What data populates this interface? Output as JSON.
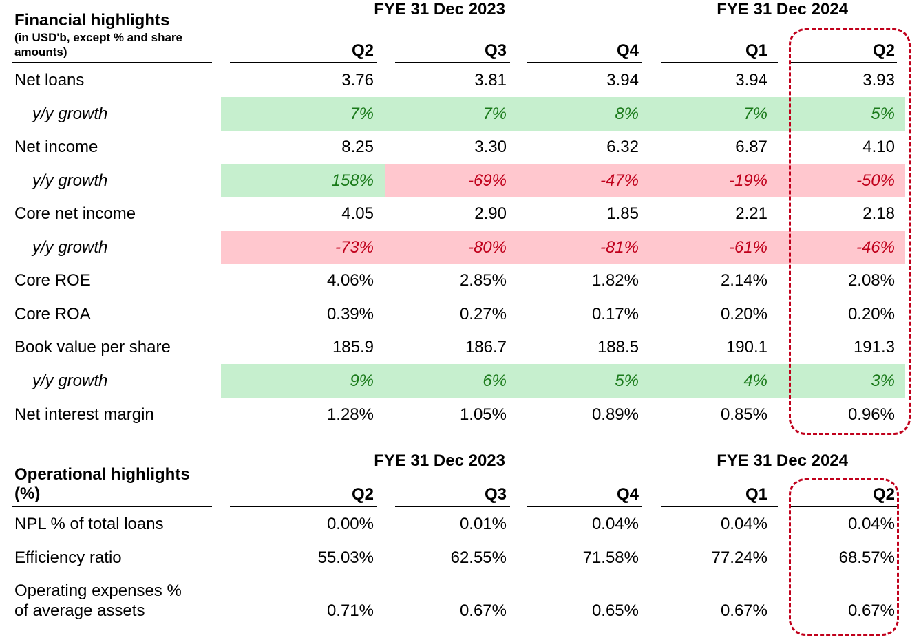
{
  "colors": {
    "positive_band": "#c6efce",
    "negative_band": "#ffc7ce",
    "positive_text": "#1a7a1a",
    "negative_text": "#c0001b",
    "highlight_outline": "#c0001b"
  },
  "financial": {
    "title": "Financial highlights",
    "subtitle_line1": "(in USD'b, except % and share",
    "subtitle_line2": "amounts)",
    "period_2023": "FYE 31 Dec 2023",
    "period_2024": "FYE 31 Dec 2024",
    "quarters": [
      "Q2",
      "Q3",
      "Q4",
      "Q1",
      "Q2"
    ],
    "rows": [
      {
        "label": "Net loans",
        "values": [
          "3.76",
          "3.81",
          "3.94",
          "3.94",
          "3.93"
        ]
      },
      {
        "label": "y/y growth",
        "values": [
          "7%",
          "7%",
          "8%",
          "7%",
          "5%"
        ],
        "signs": [
          "pos",
          "pos",
          "pos",
          "pos",
          "pos"
        ]
      },
      {
        "label": "Net income",
        "values": [
          "8.25",
          "3.30",
          "6.32",
          "6.87",
          "4.10"
        ]
      },
      {
        "label": "y/y growth",
        "values": [
          "158%",
          "-69%",
          "-47%",
          "-19%",
          "-50%"
        ],
        "signs": [
          "pos",
          "neg",
          "neg",
          "neg",
          "neg"
        ]
      },
      {
        "label": "Core net income",
        "values": [
          "4.05",
          "2.90",
          "1.85",
          "2.21",
          "2.18"
        ]
      },
      {
        "label": "y/y growth",
        "values": [
          "-73%",
          "-80%",
          "-81%",
          "-61%",
          "-46%"
        ],
        "signs": [
          "neg",
          "neg",
          "neg",
          "neg",
          "neg"
        ]
      },
      {
        "label": "Core ROE",
        "values": [
          "4.06%",
          "2.85%",
          "1.82%",
          "2.14%",
          "2.08%"
        ]
      },
      {
        "label": "Core ROA",
        "values": [
          "0.39%",
          "0.27%",
          "0.17%",
          "0.20%",
          "0.20%"
        ]
      },
      {
        "label": "Book value per share",
        "values": [
          "185.9",
          "186.7",
          "188.5",
          "190.1",
          "191.3"
        ]
      },
      {
        "label": "y/y growth",
        "values": [
          "9%",
          "6%",
          "5%",
          "4%",
          "3%"
        ],
        "signs": [
          "pos",
          "pos",
          "pos",
          "pos",
          "pos"
        ]
      },
      {
        "label": "Net interest margin",
        "values": [
          "1.28%",
          "1.05%",
          "0.89%",
          "0.85%",
          "0.96%"
        ]
      }
    ]
  },
  "operational": {
    "title_line1": "Operational highlights",
    "title_line2": "(%)",
    "period_2023": "FYE 31 Dec 2023",
    "period_2024": "FYE 31 Dec 2024",
    "quarters": [
      "Q2",
      "Q3",
      "Q4",
      "Q1",
      "Q2"
    ],
    "rows": [
      {
        "label": "NPL % of total loans",
        "values": [
          "0.00%",
          "0.01%",
          "0.04%",
          "0.04%",
          "0.04%"
        ]
      },
      {
        "label": "Efficiency ratio",
        "values": [
          "55.03%",
          "62.55%",
          "71.58%",
          "77.24%",
          "68.57%"
        ]
      },
      {
        "label_line1": "Operating expenses %",
        "label_line2": "of average assets",
        "values": [
          "0.71%",
          "0.67%",
          "0.65%",
          "0.67%",
          "0.67%"
        ]
      }
    ]
  }
}
